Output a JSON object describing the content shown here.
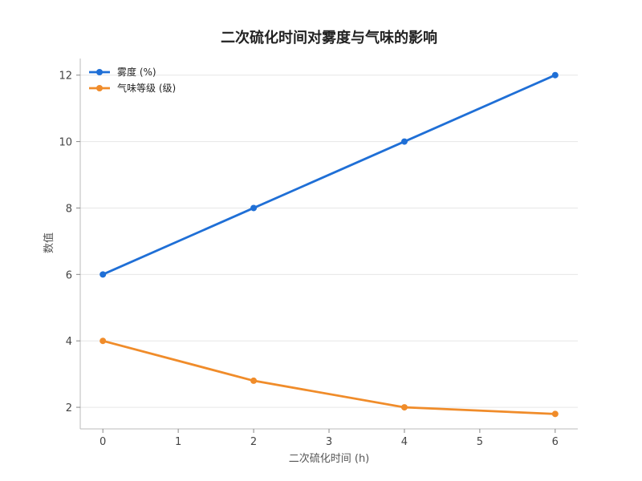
{
  "chart_data": {
    "type": "line",
    "title": "二次硫化时间对雾度与气味的影响",
    "xlabel": "二次硫化时间 (h)",
    "ylabel": "数值",
    "x": [
      0,
      2,
      4,
      6
    ],
    "xlim": [
      -0.3,
      6.3
    ],
    "ylim": [
      1.35,
      12.5
    ],
    "xticks": [
      "0",
      "1",
      "2",
      "3",
      "4",
      "5",
      "6"
    ],
    "yticks": [
      "2",
      "4",
      "6",
      "8",
      "10",
      "12"
    ],
    "grid": "horizontal",
    "legend_position": "top-left",
    "series": [
      {
        "name": "雾度 (%)",
        "values": [
          6,
          8,
          10,
          12
        ],
        "color": "#1f6fd6"
      },
      {
        "name": "气味等级 (级)",
        "values": [
          4,
          2.8,
          2.0,
          1.8
        ],
        "color": "#f08c2a"
      }
    ]
  }
}
